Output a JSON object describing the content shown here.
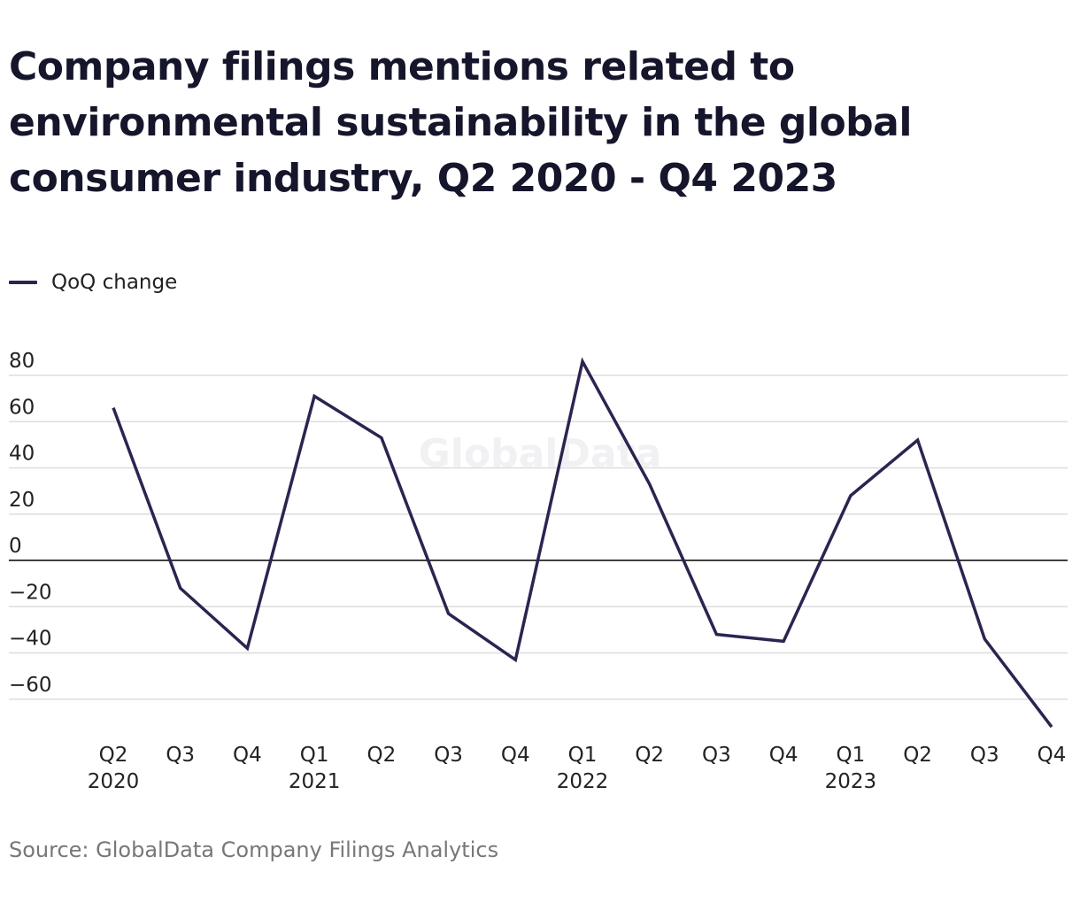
{
  "title": "Company filings mentions related to environmental sustainability in the global consumer industry, Q2 2020 - Q4 2023",
  "source": "Source: GlobalData Company Filings Analytics",
  "watermark": "GlobalData",
  "colors": {
    "line": "#2e2350",
    "grid": "#dddddd",
    "zero_line": "#000000"
  },
  "chart_data": {
    "type": "line",
    "title": "Company filings mentions related to environmental sustainability in the global consumer industry, Q2 2020 - Q4 2023",
    "xlabel": "",
    "ylabel": "",
    "categories": [
      "Q2",
      "Q3",
      "Q4",
      "Q1",
      "Q2",
      "Q3",
      "Q4",
      "Q1",
      "Q2",
      "Q3",
      "Q4",
      "Q1",
      "Q2",
      "Q3",
      "Q4"
    ],
    "year_labels": [
      "2020",
      "",
      "",
      "2021",
      "",
      "",
      "",
      "2022",
      "",
      "",
      "",
      "2023",
      "",
      "",
      ""
    ],
    "series": [
      {
        "name": "QoQ change",
        "values": [
          66,
          -12,
          -38,
          71,
          53,
          -23,
          -43,
          86,
          33,
          -32,
          -35,
          28,
          52,
          -34,
          -72
        ]
      }
    ],
    "ylim": [
      -72,
      80
    ],
    "yticks": [
      80,
      60,
      40,
      20,
      0,
      -20,
      -40,
      -60
    ],
    "ytick_labels": [
      "80",
      "60",
      "40",
      "20",
      "0",
      "−20",
      "−40",
      "−60"
    ],
    "grid": true,
    "legend_position": "top-left"
  }
}
